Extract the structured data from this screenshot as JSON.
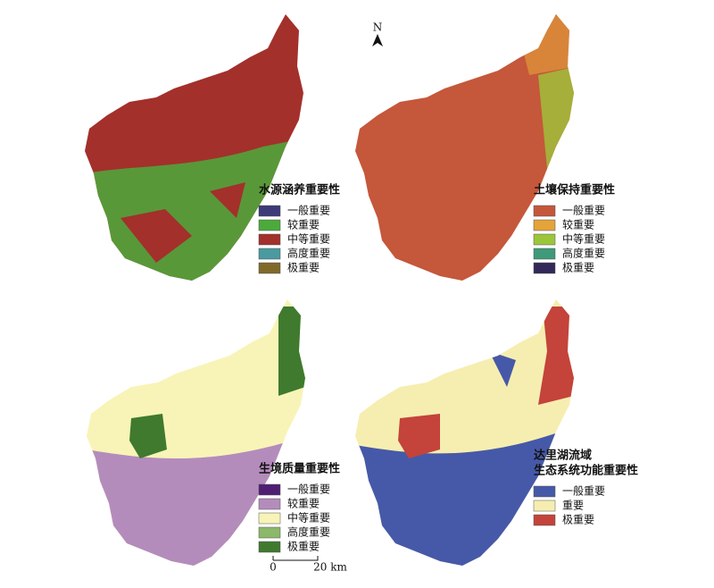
{
  "panels": [
    {
      "legend_title": [
        "水源涵养重要性"
      ],
      "legend": [
        {
          "label": "一般重要",
          "color": "#3d3a78"
        },
        {
          "label": "较重要",
          "color": "#4caa3c"
        },
        {
          "label": "中等重要",
          "color": "#a3302b"
        },
        {
          "label": "高度重要",
          "color": "#4a9aa0"
        },
        {
          "label": "极重要",
          "color": "#7f6a2a"
        }
      ]
    },
    {
      "legend_title": [
        "土壤保持重要性"
      ],
      "legend": [
        {
          "label": "一般重要",
          "color": "#c5573b"
        },
        {
          "label": "较重要",
          "color": "#e4a43a"
        },
        {
          "label": "中等重要",
          "color": "#9cc63a"
        },
        {
          "label": "高度重要",
          "color": "#3f9a7a"
        },
        {
          "label": "极重要",
          "color": "#33285a"
        }
      ]
    },
    {
      "legend_title": [
        "生境质量重要性"
      ],
      "legend": [
        {
          "label": "一般重要",
          "color": "#4f1f74"
        },
        {
          "label": "较重要",
          "color": "#b48cbc"
        },
        {
          "label": "中等重要",
          "color": "#f8f4b8"
        },
        {
          "label": "高度重要",
          "color": "#8cb86a"
        },
        {
          "label": "极重要",
          "color": "#3f7a2e"
        }
      ]
    },
    {
      "legend_title": [
        "达里湖流域",
        "生态系统功能重要性"
      ],
      "legend": [
        {
          "label": "一般重要",
          "color": "#4659a8"
        },
        {
          "label": "重要",
          "color": "#f6eeb0"
        },
        {
          "label": "极重要",
          "color": "#c4433a"
        }
      ]
    }
  ],
  "north_label": "N",
  "scale_bar": [
    "0",
    "20 km"
  ]
}
